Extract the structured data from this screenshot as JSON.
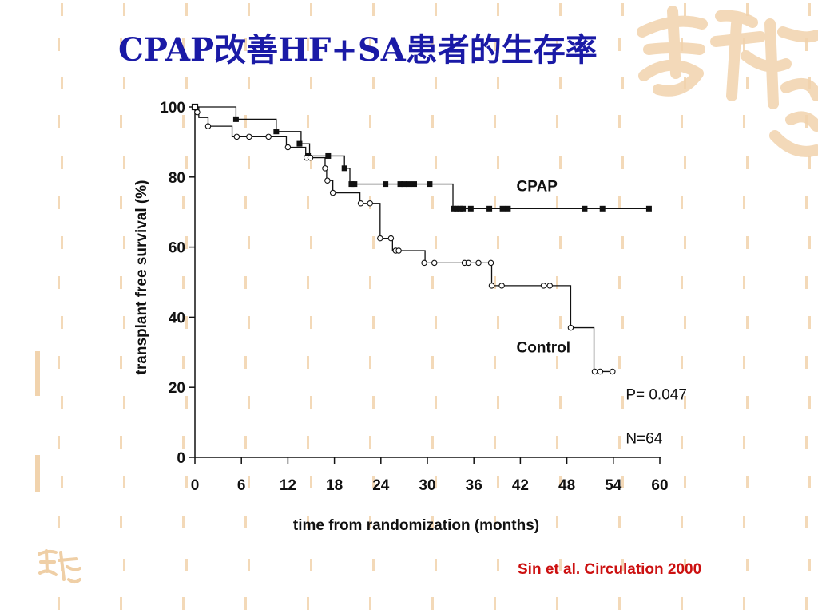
{
  "slide": {
    "title": "CPAP改善HF+SA患者的生存率",
    "citation": "Sin et al. Circulation 2000",
    "title_color": "#1a1aa6",
    "citation_color": "#cc1010",
    "decor_color": "#f3d9b8"
  },
  "chart_data": {
    "type": "line",
    "subtype": "kaplan-meier step",
    "xlabel": "time from randomization (months)",
    "ylabel": "transplant free survival (%)",
    "xlim": [
      0,
      60
    ],
    "ylim": [
      0,
      100
    ],
    "xticks": [
      0,
      6,
      12,
      18,
      24,
      30,
      36,
      42,
      48,
      54,
      60
    ],
    "yticks": [
      0,
      20,
      40,
      60,
      80,
      100
    ],
    "grid": false,
    "annotations": [
      {
        "text": "CPAP",
        "x": 41.5,
        "y": 76
      },
      {
        "text": "Control",
        "x": 41.5,
        "y": 30
      },
      {
        "text": "P= 0.047",
        "x": 55.6,
        "y": 16.5
      },
      {
        "text": "N=64",
        "x": 55.6,
        "y": 4
      }
    ],
    "series": [
      {
        "name": "CPAP",
        "marker": "filled-square",
        "steps": [
          [
            0,
            100
          ],
          [
            5.3,
            96.5
          ],
          [
            10.5,
            93
          ],
          [
            13.7,
            89.5
          ],
          [
            14.8,
            86
          ],
          [
            17.3,
            86
          ],
          [
            19.3,
            82.5
          ],
          [
            20,
            78
          ],
          [
            21,
            78
          ],
          [
            33.3,
            71
          ]
        ],
        "censored": [
          [
            5.3,
            96.5
          ],
          [
            10.5,
            93
          ],
          [
            13.5,
            89.5
          ],
          [
            14.6,
            86
          ],
          [
            17.2,
            86
          ],
          [
            19.3,
            82.5
          ],
          [
            20.2,
            78
          ],
          [
            20.6,
            78
          ],
          [
            24.6,
            78
          ],
          [
            26.5,
            78
          ],
          [
            27,
            78
          ],
          [
            27.6,
            78
          ],
          [
            28.3,
            78
          ],
          [
            30.3,
            78
          ],
          [
            33.4,
            71
          ],
          [
            33.8,
            71
          ],
          [
            34.2,
            71
          ],
          [
            34.6,
            71
          ],
          [
            35.6,
            71
          ],
          [
            38,
            71
          ],
          [
            39.7,
            71
          ],
          [
            40.4,
            71
          ],
          [
            50.3,
            71
          ],
          [
            52.6,
            71
          ],
          [
            58.6,
            71
          ]
        ]
      },
      {
        "name": "Control",
        "marker": "open-circle",
        "steps": [
          [
            0,
            100
          ],
          [
            0.5,
            97
          ],
          [
            1.7,
            94.5
          ],
          [
            4.8,
            91.5
          ],
          [
            11.8,
            88.5
          ],
          [
            14.3,
            85.5
          ],
          [
            16.8,
            82.5
          ],
          [
            17,
            79
          ],
          [
            17.8,
            75.5
          ],
          [
            21.3,
            72.5
          ],
          [
            23.9,
            62.5
          ],
          [
            25.5,
            59
          ],
          [
            29.7,
            55.5
          ],
          [
            38.3,
            49
          ],
          [
            48.5,
            37
          ],
          [
            51.5,
            24.5
          ]
        ],
        "censored": [
          [
            0.3,
            98.5
          ],
          [
            1.7,
            94.5
          ],
          [
            5.4,
            91.5
          ],
          [
            7,
            91.5
          ],
          [
            9.5,
            91.5
          ],
          [
            12,
            88.5
          ],
          [
            14.4,
            85.5
          ],
          [
            14.9,
            85.5
          ],
          [
            16.8,
            82.5
          ],
          [
            17.1,
            79
          ],
          [
            17.8,
            75.5
          ],
          [
            21.4,
            72.5
          ],
          [
            22.6,
            72.5
          ],
          [
            23.9,
            62.5
          ],
          [
            25.3,
            62.5
          ],
          [
            25.9,
            59
          ],
          [
            26.3,
            59
          ],
          [
            29.6,
            55.5
          ],
          [
            30.9,
            55.5
          ],
          [
            34.8,
            55.5
          ],
          [
            35.3,
            55.5
          ],
          [
            36.6,
            55.5
          ],
          [
            38.2,
            55.5
          ],
          [
            38.3,
            49
          ],
          [
            39.6,
            49
          ],
          [
            45,
            49
          ],
          [
            45.8,
            49
          ],
          [
            48.5,
            37
          ],
          [
            51.6,
            24.5
          ],
          [
            52.3,
            24.5
          ],
          [
            53.9,
            24.5
          ]
        ]
      }
    ]
  }
}
